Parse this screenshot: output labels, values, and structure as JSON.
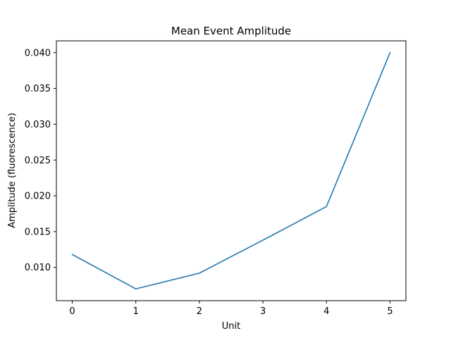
{
  "chart_data": {
    "type": "line",
    "title": "Mean Event Amplitude",
    "xlabel": "Unit",
    "ylabel": "Amplitude (fluorescence)",
    "x": [
      0,
      1,
      2,
      3,
      4,
      5
    ],
    "series": [
      {
        "values": [
          0.0118,
          0.007,
          0.0092,
          0.0138,
          0.0185,
          0.04
        ],
        "color": "#1f77b4"
      }
    ],
    "xlim": [
      -0.25,
      5.25
    ],
    "ylim": [
      0.00535,
      0.04165
    ],
    "xticks": [
      0,
      1,
      2,
      3,
      4,
      5
    ],
    "xtick_labels": [
      "0",
      "1",
      "2",
      "3",
      "4",
      "5"
    ],
    "yticks": [
      0.01,
      0.015,
      0.02,
      0.025,
      0.03,
      0.035,
      0.04
    ],
    "ytick_labels": [
      "0.010",
      "0.015",
      "0.020",
      "0.025",
      "0.030",
      "0.035",
      "0.040"
    ],
    "grid": false,
    "legend": false
  }
}
